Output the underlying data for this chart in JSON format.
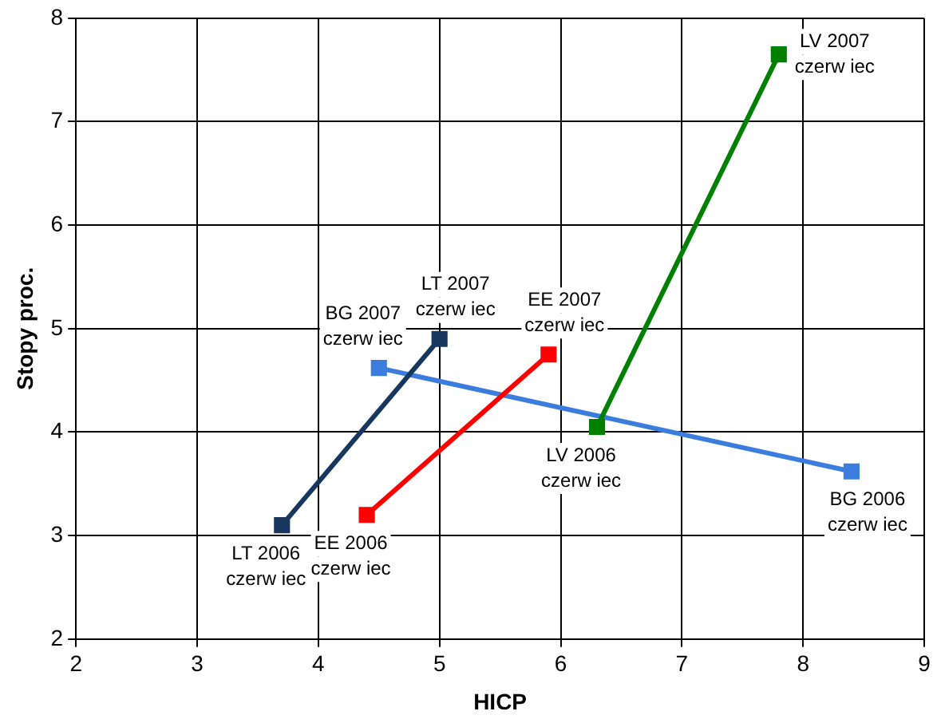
{
  "chart_data": {
    "type": "line",
    "xlabel": "HICP",
    "ylabel": "Stopy proc.",
    "xlim": [
      2,
      9
    ],
    "xticks": [
      2,
      3,
      4,
      5,
      6,
      7,
      8,
      9
    ],
    "ylim": [
      2,
      8
    ],
    "yticks": [
      2,
      3,
      4,
      5,
      6,
      7,
      8
    ],
    "grid": true,
    "legend": false,
    "marker": "square",
    "line_style": "solid",
    "series": [
      {
        "color": "#17375e",
        "x": [
          3.7,
          5.0
        ],
        "values": [
          3.1,
          4.9
        ]
      },
      {
        "color": "#ff0000",
        "x": [
          4.4,
          5.9
        ],
        "values": [
          3.2,
          4.75
        ]
      },
      {
        "color": "#008000",
        "x": [
          6.3,
          7.8
        ],
        "values": [
          4.05,
          7.65
        ]
      },
      {
        "color": "#3b7ddd",
        "x": [
          8.4,
          4.5
        ],
        "values": [
          3.62,
          4.62
        ]
      }
    ],
    "annotations": [
      {
        "text": "LT 2006\nczerw iec",
        "x": 3.7,
        "y": 3.1
      },
      {
        "text": "LT 2007\nczerw iec",
        "x": 5.0,
        "y": 4.9
      },
      {
        "text": "EE 2007\nczerw iec",
        "x": 5.9,
        "y": 4.75
      },
      {
        "text": "BG 2007\nczerw iec",
        "x": 4.5,
        "y": 4.62
      },
      {
        "text": "EE 2006\nczerw iec",
        "x": 4.4,
        "y": 3.2
      },
      {
        "text": "LV 2006\nczerw iec",
        "x": 6.3,
        "y": 4.05
      },
      {
        "text": "BG 2006\nczerw iec",
        "x": 8.4,
        "y": 3.62
      },
      {
        "text": "LV 2007\nczerw iec",
        "x": 7.8,
        "y": 7.65
      }
    ]
  }
}
